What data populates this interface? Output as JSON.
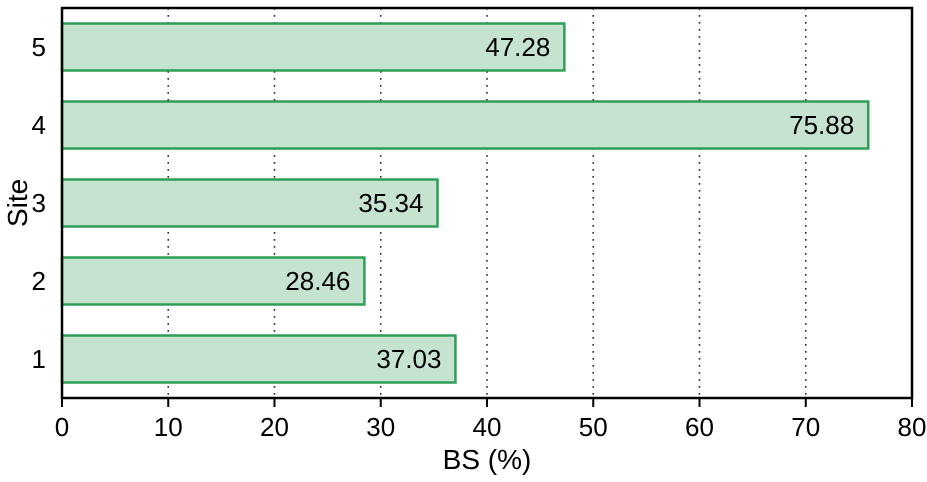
{
  "chart_data": {
    "type": "bar",
    "orientation": "horizontal",
    "title": "",
    "xlabel": "BS (%)",
    "ylabel": "Site",
    "categories": [
      "5",
      "4",
      "3",
      "2",
      "1"
    ],
    "values": [
      47.28,
      75.88,
      35.34,
      28.46,
      37.03
    ],
    "value_labels": [
      "47.28",
      "75.88",
      "35.34",
      "28.46",
      "37.03"
    ],
    "xlim": [
      0,
      80
    ],
    "xtick_step": 10,
    "xtick_labels": [
      "0",
      "10",
      "20",
      "30",
      "40",
      "50",
      "60",
      "70",
      "80"
    ],
    "grid": "dotted-vertical",
    "legend": "none",
    "colors": {
      "bar_fill": "#c6e3d0",
      "bar_stroke": "#2f9e57",
      "frame": "#000000",
      "gridline": "#333333",
      "text": "#000000",
      "background": "#ffffff"
    }
  }
}
